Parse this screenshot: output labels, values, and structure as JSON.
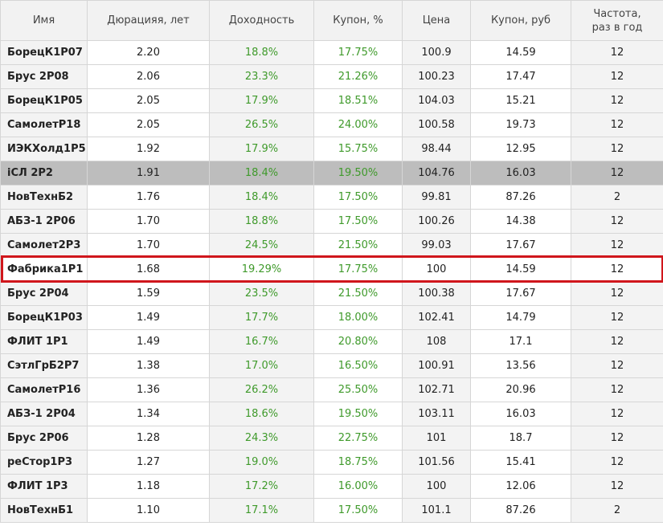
{
  "table": {
    "header": [
      "Имя",
      "Дюрацияя, лет",
      "Доходность",
      "Купон, %",
      "Цена",
      "Купон, руб",
      "Частота,\nраз в год"
    ],
    "rows": [
      [
        "БорецК1Р07",
        "2.20",
        "18.8%",
        "17.75%",
        "100.9",
        "14.59",
        "12"
      ],
      [
        "Брус 2Р08",
        "2.06",
        "23.3%",
        "21.26%",
        "100.23",
        "17.47",
        "12"
      ],
      [
        "БорецК1Р05",
        "2.05",
        "17.9%",
        "18.51%",
        "104.03",
        "15.21",
        "12"
      ],
      [
        "СамолетР18",
        "2.05",
        "26.5%",
        "24.00%",
        "100.58",
        "19.73",
        "12"
      ],
      [
        "ИЭКХолд1Р5",
        "1.92",
        "17.9%",
        "15.75%",
        "98.44",
        "12.95",
        "12"
      ],
      [
        "iСЛ 2Р2",
        "1.91",
        "18.4%",
        "19.50%",
        "104.76",
        "16.03",
        "12"
      ],
      [
        "НовТехнБ2",
        "1.76",
        "18.4%",
        "17.50%",
        "99.81",
        "87.26",
        "2"
      ],
      [
        "АБЗ-1 2Р06",
        "1.70",
        "18.8%",
        "17.50%",
        "100.26",
        "14.38",
        "12"
      ],
      [
        "Самолет2Р3",
        "1.70",
        "24.5%",
        "21.50%",
        "99.03",
        "17.67",
        "12"
      ],
      [
        "Фабрика1Р1",
        "1.68",
        "19.29%",
        "17.75%",
        "100",
        "14.59",
        "12"
      ],
      [
        "Брус 2Р04",
        "1.59",
        "23.5%",
        "21.50%",
        "100.38",
        "17.67",
        "12"
      ],
      [
        "БорецК1Р03",
        "1.49",
        "17.7%",
        "18.00%",
        "102.41",
        "14.79",
        "12"
      ],
      [
        "ФЛИТ 1Р1",
        "1.49",
        "16.7%",
        "20.80%",
        "108",
        "17.1",
        "12"
      ],
      [
        "СэтлГрБ2Р7",
        "1.38",
        "17.0%",
        "16.50%",
        "100.91",
        "13.56",
        "12"
      ],
      [
        "СамолетР16",
        "1.36",
        "26.2%",
        "25.50%",
        "102.71",
        "20.96",
        "12"
      ],
      [
        "АБЗ-1 2Р04",
        "1.34",
        "18.6%",
        "19.50%",
        "103.11",
        "16.03",
        "12"
      ],
      [
        "Брус 2Р06",
        "1.28",
        "24.3%",
        "22.75%",
        "101",
        "18.7",
        "12"
      ],
      [
        "реСтор1Р3",
        "1.27",
        "19.0%",
        "18.75%",
        "101.56",
        "15.41",
        "12"
      ],
      [
        "ФЛИТ 1Р3",
        "1.18",
        "17.2%",
        "16.00%",
        "100",
        "12.06",
        "12"
      ],
      [
        "НовТехнБ1",
        "1.10",
        "17.1%",
        "17.50%",
        "101.1",
        "87.26",
        "2"
      ]
    ]
  }
}
